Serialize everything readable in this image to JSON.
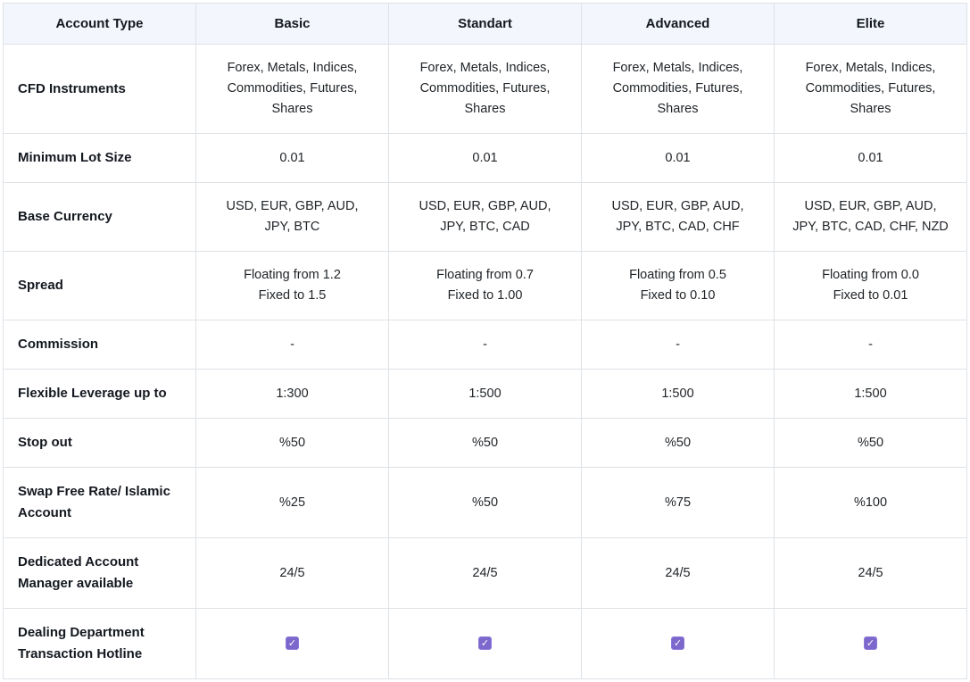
{
  "table": {
    "columns": [
      "Account Type",
      "Basic",
      "Standart",
      "Advanced",
      "Elite"
    ],
    "rows": [
      {
        "label": "CFD Instruments",
        "type": "text",
        "values": [
          [
            "Forex, Metals, Indices,",
            "Commodities, Futures,",
            "Shares"
          ],
          [
            "Forex, Metals, Indices,",
            "Commodities, Futures,",
            "Shares"
          ],
          [
            "Forex, Metals, Indices,",
            "Commodities, Futures,",
            "Shares"
          ],
          [
            "Forex, Metals, Indices,",
            "Commodities, Futures,",
            "Shares"
          ]
        ]
      },
      {
        "label": "Minimum Lot Size",
        "type": "text",
        "values": [
          "0.01",
          "0.01",
          "0.01",
          "0.01"
        ]
      },
      {
        "label": "Base Currency",
        "type": "text",
        "values": [
          [
            "USD, EUR, GBP, AUD,",
            "JPY, BTC"
          ],
          [
            "USD, EUR, GBP, AUD,",
            "JPY, BTC, CAD"
          ],
          [
            "USD, EUR, GBP, AUD,",
            "JPY, BTC, CAD, CHF"
          ],
          [
            "USD, EUR, GBP, AUD,",
            "JPY, BTC, CAD, CHF, NZD"
          ]
        ]
      },
      {
        "label": "Spread",
        "type": "text",
        "values": [
          [
            "Floating from 1.2",
            "Fixed to 1.5"
          ],
          [
            "Floating from 0.7",
            "Fixed to 1.00"
          ],
          [
            "Floating from 0.5",
            "Fixed to 0.10"
          ],
          [
            "Floating from 0.0",
            "Fixed to 0.01"
          ]
        ]
      },
      {
        "label": "Commission",
        "type": "text",
        "values": [
          "-",
          "-",
          "-",
          "-"
        ]
      },
      {
        "label": "Flexible Leverage up to",
        "type": "text",
        "values": [
          "1:300",
          "1:500",
          "1:500",
          "1:500"
        ]
      },
      {
        "label": "Stop out",
        "type": "text",
        "values": [
          "%50",
          "%50",
          "%50",
          "%50"
        ]
      },
      {
        "label": "Swap Free Rate/ Islamic Account",
        "type": "text",
        "values": [
          "%25",
          "%50",
          "%75",
          "%100"
        ]
      },
      {
        "label": "Dedicated Account Manager available",
        "type": "text",
        "values": [
          "24/5",
          "24/5",
          "24/5",
          "24/5"
        ]
      },
      {
        "label": "Dealing Department Transaction Hotline",
        "type": "checkbox",
        "values": [
          true,
          true,
          true,
          true
        ]
      }
    ]
  },
  "icons": {
    "check": "✓"
  },
  "colors": {
    "header_bg": "#f3f6fc",
    "border": "#dee2e6",
    "text": "#212529",
    "label_text": "#14181f",
    "checkbox": "#7c68cc",
    "check_glyph": "#ffffff"
  }
}
